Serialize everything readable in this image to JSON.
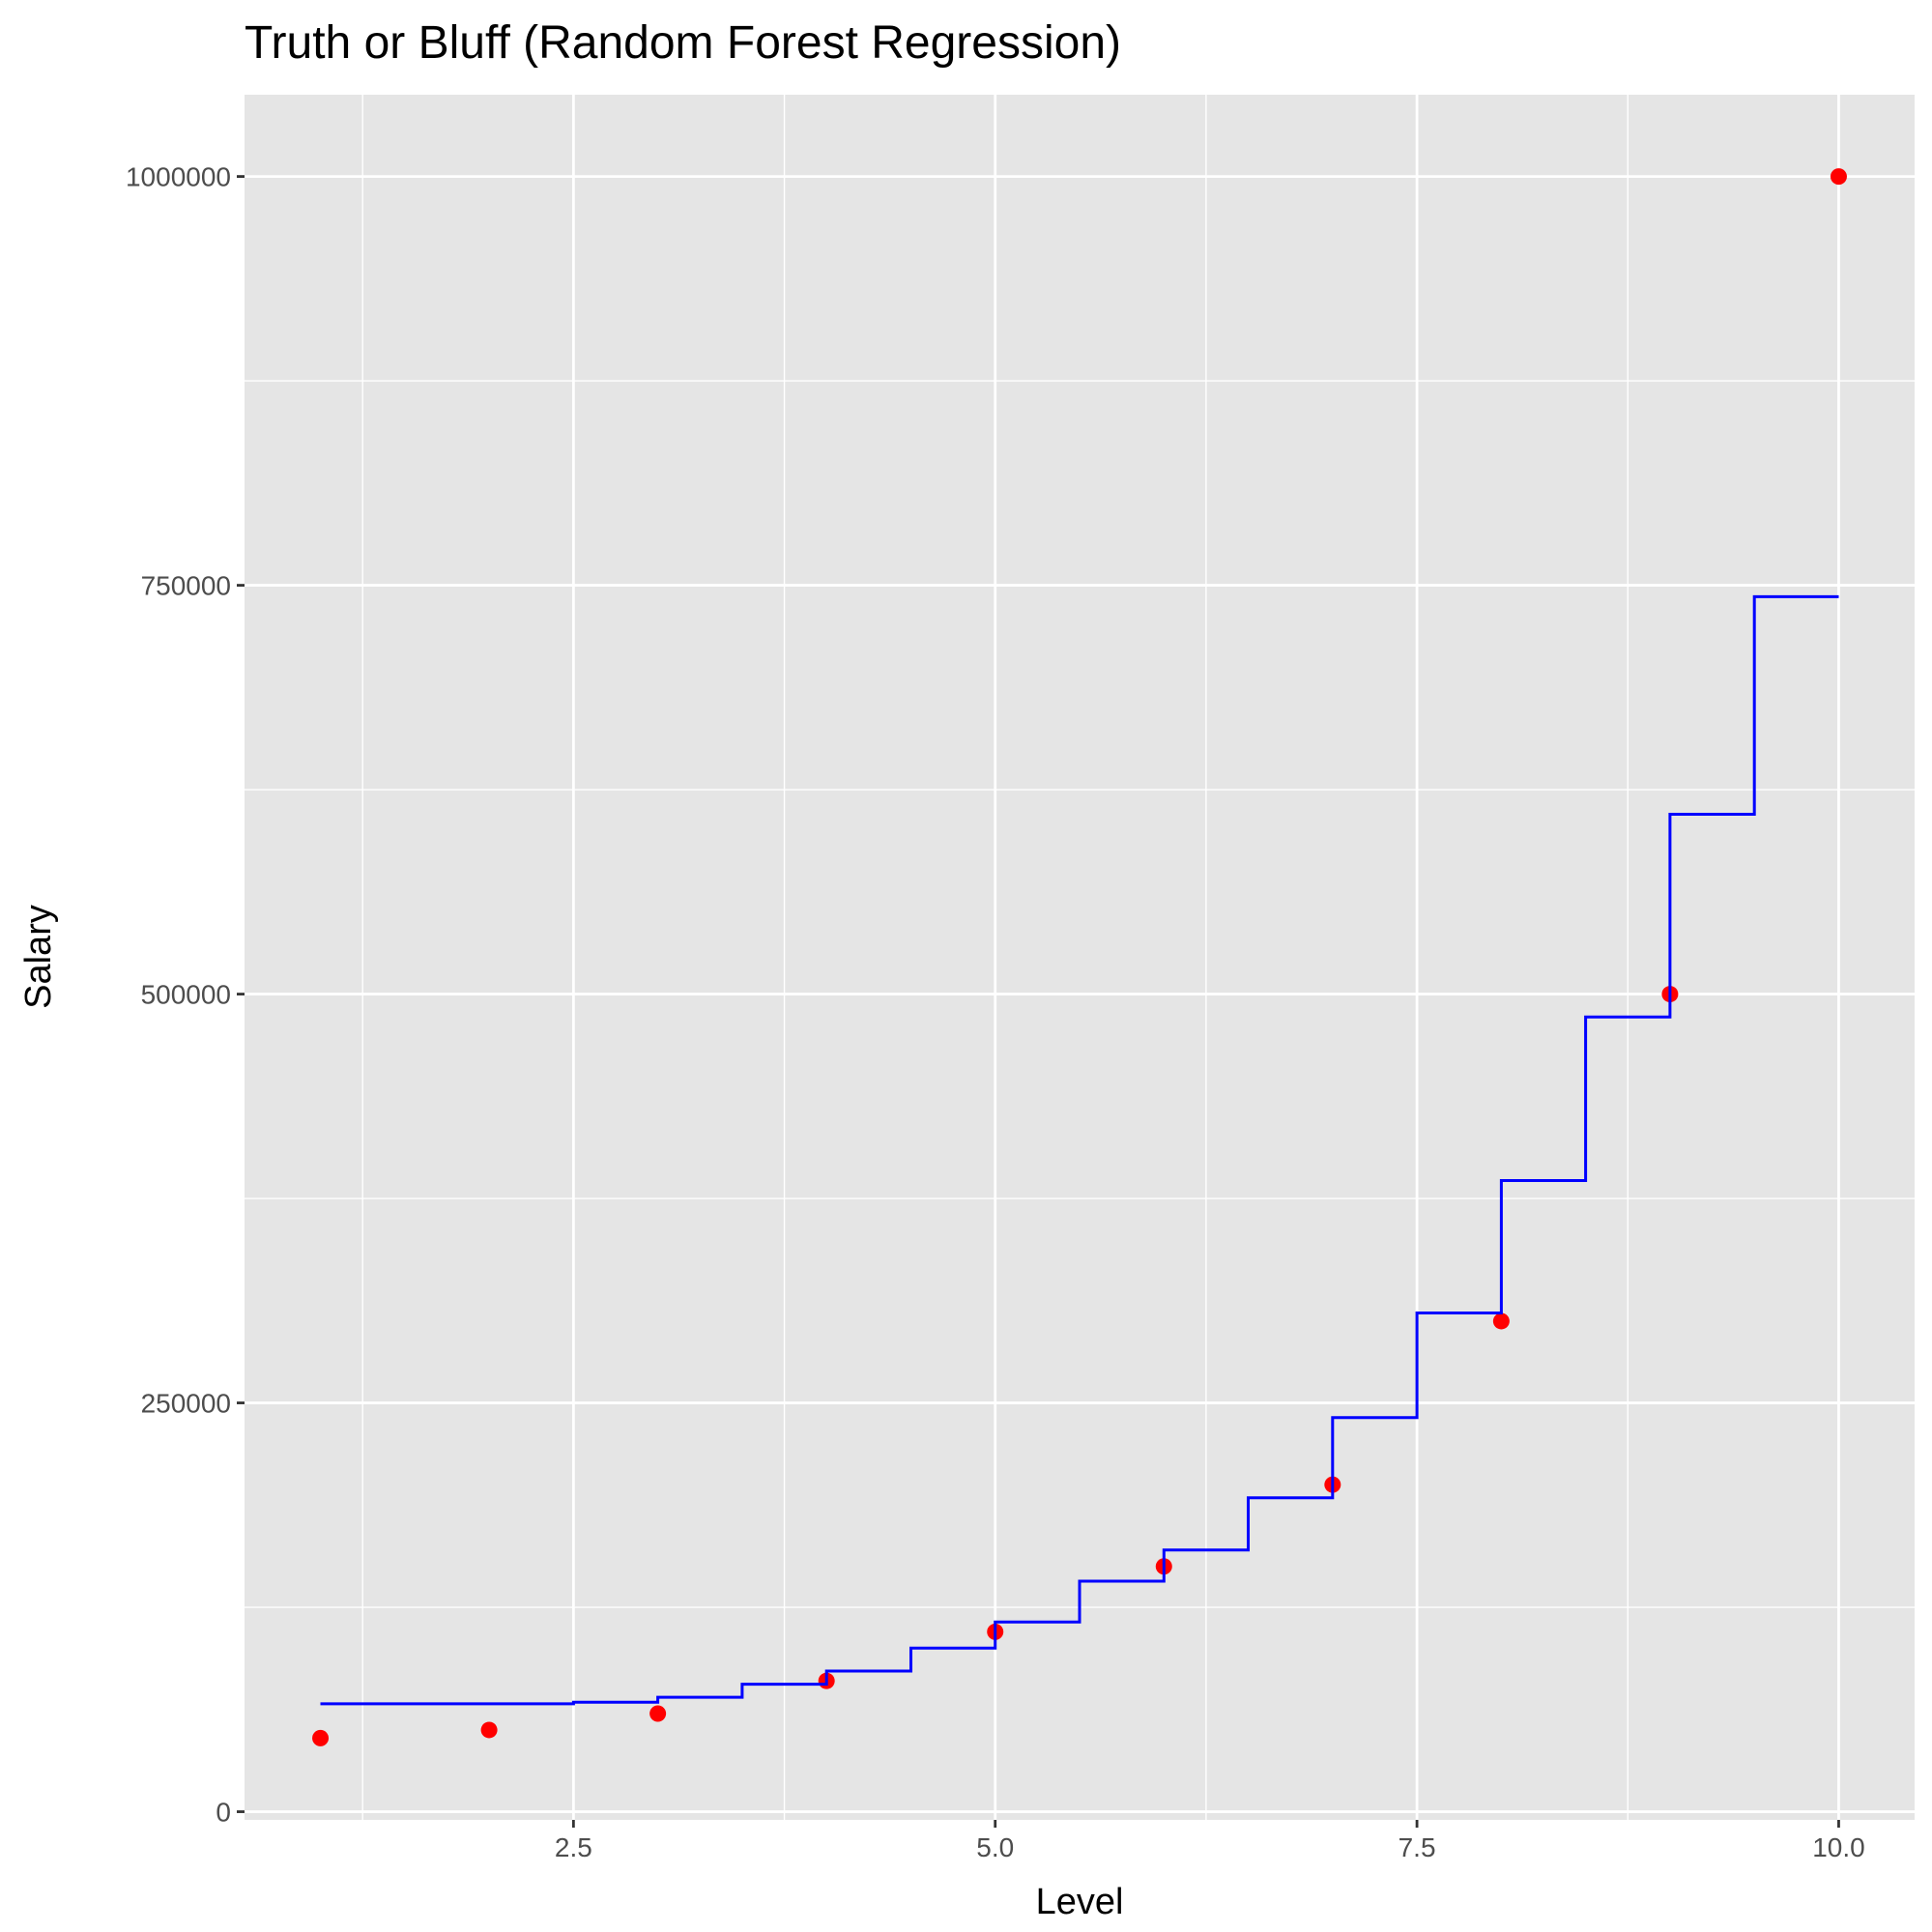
{
  "chart_data": {
    "type": "line",
    "title": "Truth or Bluff (Random Forest Regression)",
    "xlabel": "Level",
    "ylabel": "Salary",
    "xlim": [
      0.55,
      10.45
    ],
    "ylim": [
      -5000,
      1050000
    ],
    "grid": true,
    "x_ticks": [
      {
        "value": 2.5,
        "label": "2.5"
      },
      {
        "value": 5.0,
        "label": "5.0"
      },
      {
        "value": 7.5,
        "label": "7.5"
      },
      {
        "value": 10.0,
        "label": "10.0"
      }
    ],
    "y_ticks": [
      {
        "value": 0,
        "label": "0"
      },
      {
        "value": 250000,
        "label": "250000"
      },
      {
        "value": 500000,
        "label": "500000"
      },
      {
        "value": 750000,
        "label": "750000"
      },
      {
        "value": 1000000,
        "label": "1000000"
      }
    ],
    "x_minor": [
      1.25,
      3.75,
      6.25,
      8.75
    ],
    "y_minor": [
      125000,
      375000,
      625000,
      875000
    ],
    "series": [
      {
        "kind": "scatter",
        "color": "#ff0000",
        "x": [
          1,
          2,
          3,
          4,
          5,
          6,
          7,
          8,
          9,
          10
        ],
        "y": [
          45000,
          50000,
          60000,
          80000,
          110000,
          150000,
          200000,
          300000,
          500000,
          1000000
        ]
      },
      {
        "kind": "step",
        "color": "#0000ff",
        "x": [
          1.0,
          2.5,
          3.0,
          3.5,
          4.0,
          4.5,
          5.0,
          5.5,
          6.0,
          6.5,
          7.0,
          7.5,
          8.0,
          8.5,
          9.0,
          9.5,
          10.0
        ],
        "y": [
          66000,
          67000,
          70000,
          78000,
          86000,
          100000,
          116000,
          141000,
          160000,
          192000,
          241000,
          305000,
          386000,
          486000,
          610000,
          743000,
          743000
        ]
      }
    ]
  }
}
